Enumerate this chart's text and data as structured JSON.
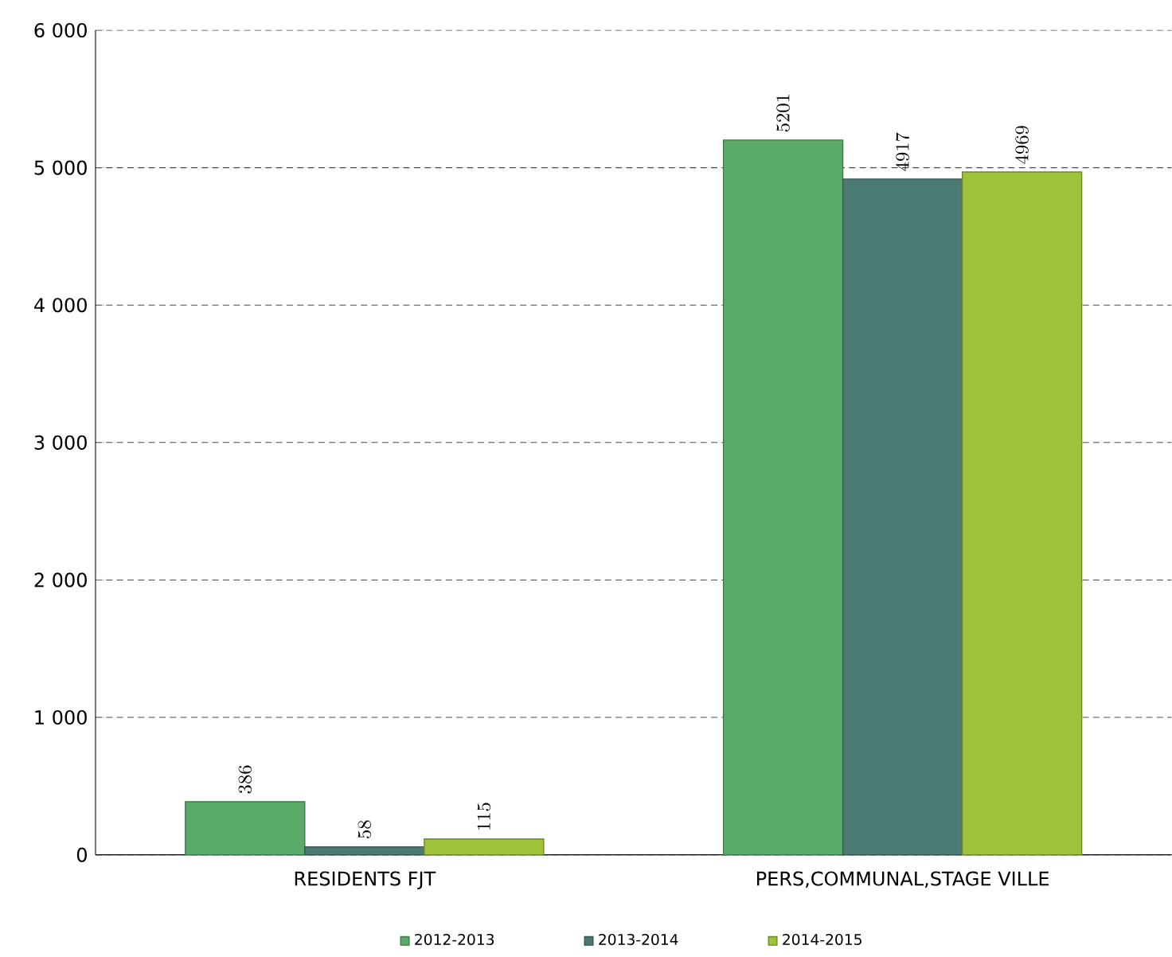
{
  "chart_data": {
    "type": "bar",
    "categories": [
      "RESIDENTS FJT",
      "PERS,COMMUNAL,STAGE VILLE"
    ],
    "series": [
      {
        "name": "2012-2013",
        "color": "#5aaa6a",
        "values": [
          386,
          5201
        ]
      },
      {
        "name": "2013-2014",
        "color": "#4a7a72",
        "values": [
          58,
          4917
        ]
      },
      {
        "name": "2014-2015",
        "color": "#9ec23a",
        "values": [
          115,
          4969
        ]
      }
    ],
    "ylim": [
      0,
      6000
    ],
    "yticks": [
      {
        "value": 0,
        "label": "0"
      },
      {
        "value": 1000,
        "label": "1 000"
      },
      {
        "value": 2000,
        "label": "2 000"
      },
      {
        "value": 3000,
        "label": "3 000"
      },
      {
        "value": 4000,
        "label": "4 000"
      },
      {
        "value": 5000,
        "label": "5 000"
      },
      {
        "value": 6000,
        "label": "6 000"
      }
    ],
    "grid": "y",
    "legend": "bottom",
    "data_labels": true
  }
}
